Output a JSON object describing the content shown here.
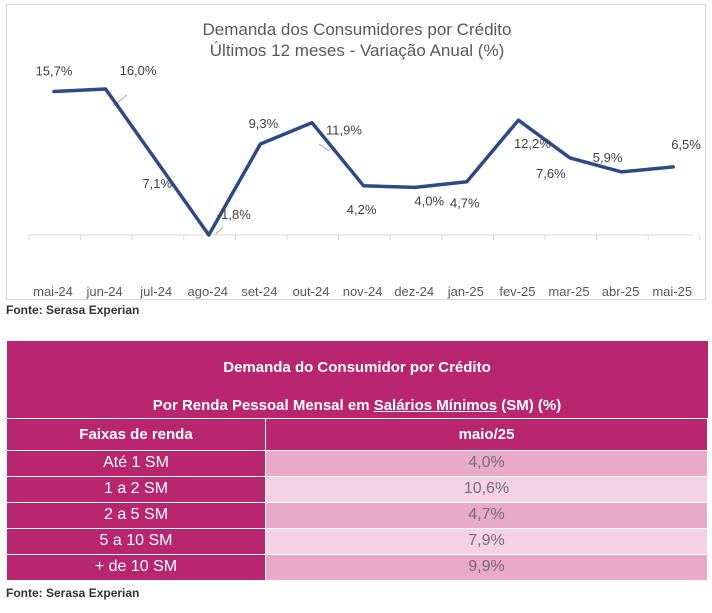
{
  "chart_data": {
    "type": "line",
    "title": "Demanda dos Consumidores por Crédito",
    "subtitle": "Últimos 12 meses - Variação Anual (%)",
    "categories": [
      "mai-24",
      "jun-24",
      "jul-24",
      "ago-24",
      "set-24",
      "out-24",
      "nov-24",
      "dez-24",
      "jan-25",
      "fev-25",
      "mar-25",
      "abr-25",
      "mai-25"
    ],
    "values": [
      15.7,
      16.0,
      7.1,
      -1.8,
      9.3,
      11.9,
      4.2,
      4.0,
      4.7,
      12.2,
      7.6,
      5.9,
      6.5
    ],
    "data_labels": [
      "15,7%",
      "16,0%",
      "7,1%",
      "-1,8%",
      "9,3%",
      "11,9%",
      "4,2%",
      "4,0%",
      "4,7%",
      "12,2%",
      "7,6%",
      "5,9%",
      "6,5%"
    ],
    "ylim": [
      -2,
      18
    ],
    "line_color": "#2e4a86",
    "grid": false,
    "legend": "none"
  },
  "source_1": "Fonte: Serasa Experian",
  "table": {
    "title_line1": "Demanda do Consumidor por Crédito",
    "title_line2_pre": "Por Renda Pessoal Mensal em ",
    "title_line2_underlined": "Salários Mínimos",
    "title_line2_post": " (SM) (%)",
    "col_header_1": "Faixas de renda",
    "col_header_2": "maio/25",
    "rows": [
      {
        "label": "Até 1 SM",
        "value": "4,0%"
      },
      {
        "label": "1 a 2 SM",
        "value": "10,6%"
      },
      {
        "label": "2 a 5 SM",
        "value": "4,7%"
      },
      {
        "label": "5 a 10 SM",
        "value": "7,9%"
      },
      {
        "label": "+ de 10 SM",
        "value": "9,9%"
      }
    ],
    "header_color": "#b8266f"
  },
  "source_2": "Fonte: Serasa Experian"
}
